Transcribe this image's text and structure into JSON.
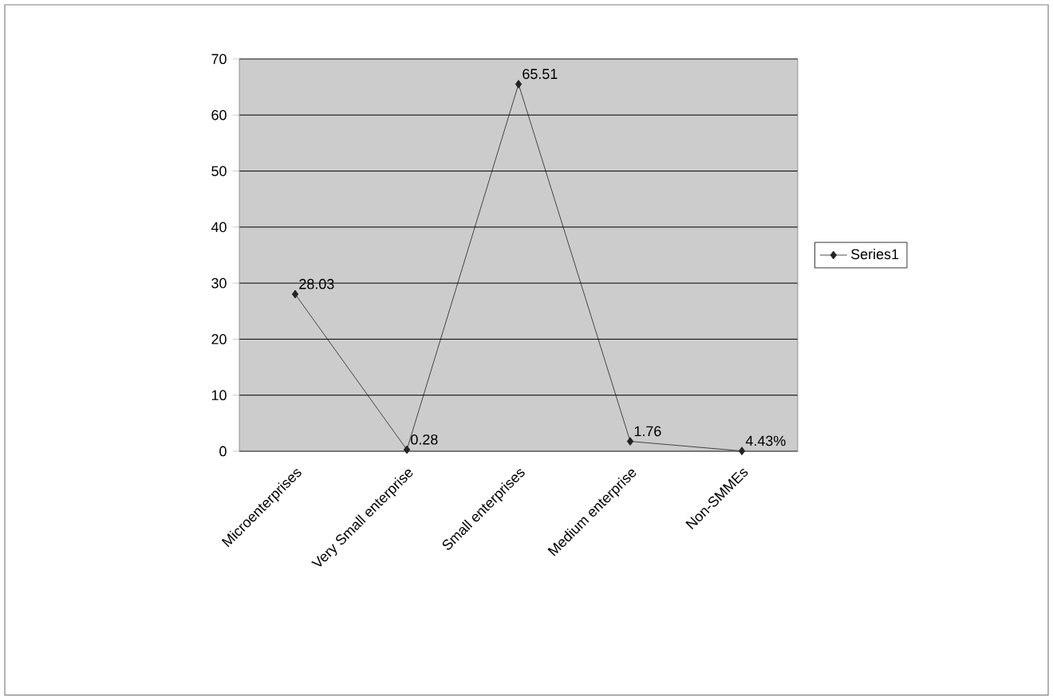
{
  "chart_data": {
    "type": "line",
    "categories": [
      "Microenterprises",
      "Very Small enterprise",
      "Small enterprises",
      "Medium enterprise",
      "Non-SMMEs"
    ],
    "series": [
      {
        "name": "Series1",
        "color": "#222222",
        "values": [
          28.03,
          0.28,
          65.51,
          1.76,
          0.0443
        ],
        "value_labels": [
          "28.03",
          "0.28",
          "65.51",
          "1.76",
          "4.43%"
        ]
      }
    ],
    "ylim": [
      0,
      70
    ],
    "yticks": [
      0,
      10,
      20,
      30,
      40,
      50,
      60,
      70
    ],
    "grid": "y",
    "legend": "right",
    "marker": "diamond",
    "line_style": "solid"
  }
}
